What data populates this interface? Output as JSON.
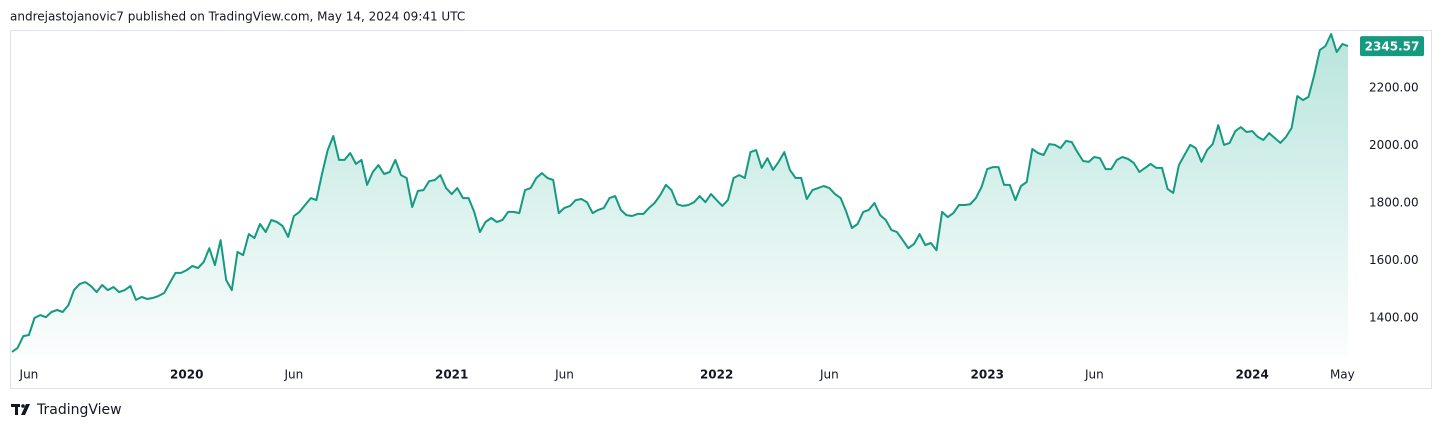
{
  "header": "andrejastojanovic7 published on TradingView.com, May 14, 2024 09:41 UTC",
  "brand": "TradingView",
  "chart_data": {
    "type": "area",
    "color": "#149a80",
    "categories": [
      null,
      null,
      null,
      "Jun",
      null,
      null,
      null,
      null,
      null,
      null,
      null,
      null,
      null,
      null,
      null,
      null,
      null,
      null,
      null,
      null,
      null,
      null,
      null,
      null,
      null,
      null,
      null,
      null,
      null,
      null,
      null,
      "2020",
      null,
      null,
      null,
      null,
      null,
      null,
      null,
      null,
      null,
      null,
      null,
      null,
      null,
      null,
      null,
      null,
      null,
      null,
      "Jun",
      null,
      null,
      null,
      null,
      null,
      null,
      null,
      null,
      null,
      null,
      null,
      null,
      null,
      null,
      null,
      null,
      null,
      null,
      null,
      null,
      null,
      null,
      null,
      null,
      null,
      null,
      null,
      "2021",
      null,
      null,
      null,
      null,
      null,
      null,
      null,
      null,
      null,
      null,
      null,
      null,
      null,
      null,
      null,
      null,
      null,
      null,
      null,
      "Jun",
      null,
      null,
      null,
      null,
      null,
      null,
      null,
      null,
      null,
      null,
      null,
      null,
      null,
      null,
      null,
      null,
      null,
      null,
      null,
      null,
      null,
      null,
      null,
      null,
      null,
      null,
      "2022",
      null,
      null,
      null,
      null,
      null,
      null,
      null,
      null,
      null,
      null,
      null,
      null,
      null,
      null,
      null,
      null,
      null,
      null,
      null,
      "Jun",
      null,
      null,
      null,
      null,
      null,
      null,
      null,
      null,
      null,
      null,
      null,
      null,
      null,
      null,
      null,
      null,
      null,
      null,
      null,
      null,
      null,
      null,
      null,
      null,
      null,
      null,
      null,
      "2023",
      null,
      null,
      null,
      null,
      null,
      null,
      null,
      null,
      null,
      null,
      null,
      null,
      null,
      null,
      null,
      null,
      null,
      null,
      "Jun",
      null,
      null,
      null,
      null,
      null,
      null,
      null,
      null,
      null,
      null,
      null,
      null,
      null,
      null,
      null,
      null,
      null,
      null,
      null,
      null,
      null,
      null,
      null,
      null,
      null,
      null,
      null,
      "2024",
      null,
      null,
      null,
      null,
      null,
      null,
      null,
      null,
      null,
      null,
      null,
      null,
      null,
      null,
      null,
      "May",
      null
    ],
    "values": [
      1282,
      1296,
      1337,
      1341,
      1400,
      1410,
      1403,
      1421,
      1428,
      1421,
      1445,
      1497,
      1518,
      1525,
      1511,
      1490,
      1515,
      1497,
      1508,
      1490,
      1497,
      1511,
      1463,
      1473,
      1466,
      1470,
      1477,
      1487,
      1522,
      1557,
      1557,
      1567,
      1581,
      1574,
      1595,
      1643,
      1584,
      1671,
      1532,
      1497,
      1630,
      1619,
      1692,
      1678,
      1727,
      1699,
      1741,
      1734,
      1720,
      1682,
      1755,
      1769,
      1793,
      1817,
      1810,
      1901,
      1984,
      2033,
      1950,
      1950,
      1974,
      1936,
      1950,
      1863,
      1908,
      1932,
      1901,
      1908,
      1950,
      1897,
      1887,
      1786,
      1842,
      1845,
      1876,
      1880,
      1897,
      1852,
      1831,
      1852,
      1817,
      1817,
      1769,
      1699,
      1734,
      1748,
      1734,
      1741,
      1769,
      1769,
      1765,
      1845,
      1852,
      1887,
      1904,
      1887,
      1880,
      1765,
      1783,
      1790,
      1810,
      1814,
      1803,
      1765,
      1776,
      1783,
      1817,
      1824,
      1776,
      1758,
      1755,
      1762,
      1762,
      1783,
      1800,
      1828,
      1863,
      1845,
      1796,
      1790,
      1793,
      1803,
      1824,
      1803,
      1831,
      1810,
      1790,
      1810,
      1887,
      1897,
      1887,
      1977,
      1984,
      1922,
      1956,
      1915,
      1943,
      1977,
      1915,
      1887,
      1887,
      1814,
      1845,
      1852,
      1859,
      1852,
      1831,
      1817,
      1769,
      1713,
      1727,
      1769,
      1776,
      1800,
      1758,
      1741,
      1706,
      1699,
      1671,
      1643,
      1657,
      1692,
      1654,
      1661,
      1636,
      1769,
      1751,
      1765,
      1793,
      1793,
      1796,
      1817,
      1856,
      1918,
      1925,
      1925,
      1863,
      1863,
      1810,
      1859,
      1873,
      1988,
      1974,
      1967,
      2005,
      2002,
      1991,
      2016,
      2012,
      1977,
      1946,
      1943,
      1960,
      1956,
      1918,
      1918,
      1950,
      1960,
      1953,
      1939,
      1908,
      1922,
      1936,
      1922,
      1922,
      1849,
      1835,
      1932,
      1967,
      2002,
      1991,
      1943,
      1984,
      2005,
      2071,
      2002,
      2009,
      2050,
      2064,
      2047,
      2050,
      2030,
      2019,
      2043,
      2026,
      2009,
      2030,
      2061,
      2172,
      2158,
      2169,
      2245,
      2332,
      2346,
      2388,
      2325,
      2353,
      2345.57
    ],
    "ylim": [
      1270,
      2400
    ],
    "yticks": [
      {
        "value": 1400,
        "label": "1400.00"
      },
      {
        "value": 1600,
        "label": "1600.00"
      },
      {
        "value": 1800,
        "label": "1800.00"
      },
      {
        "value": 2000,
        "label": "2000.00"
      },
      {
        "value": 2200,
        "label": "2200.00"
      }
    ],
    "grid": false
  }
}
